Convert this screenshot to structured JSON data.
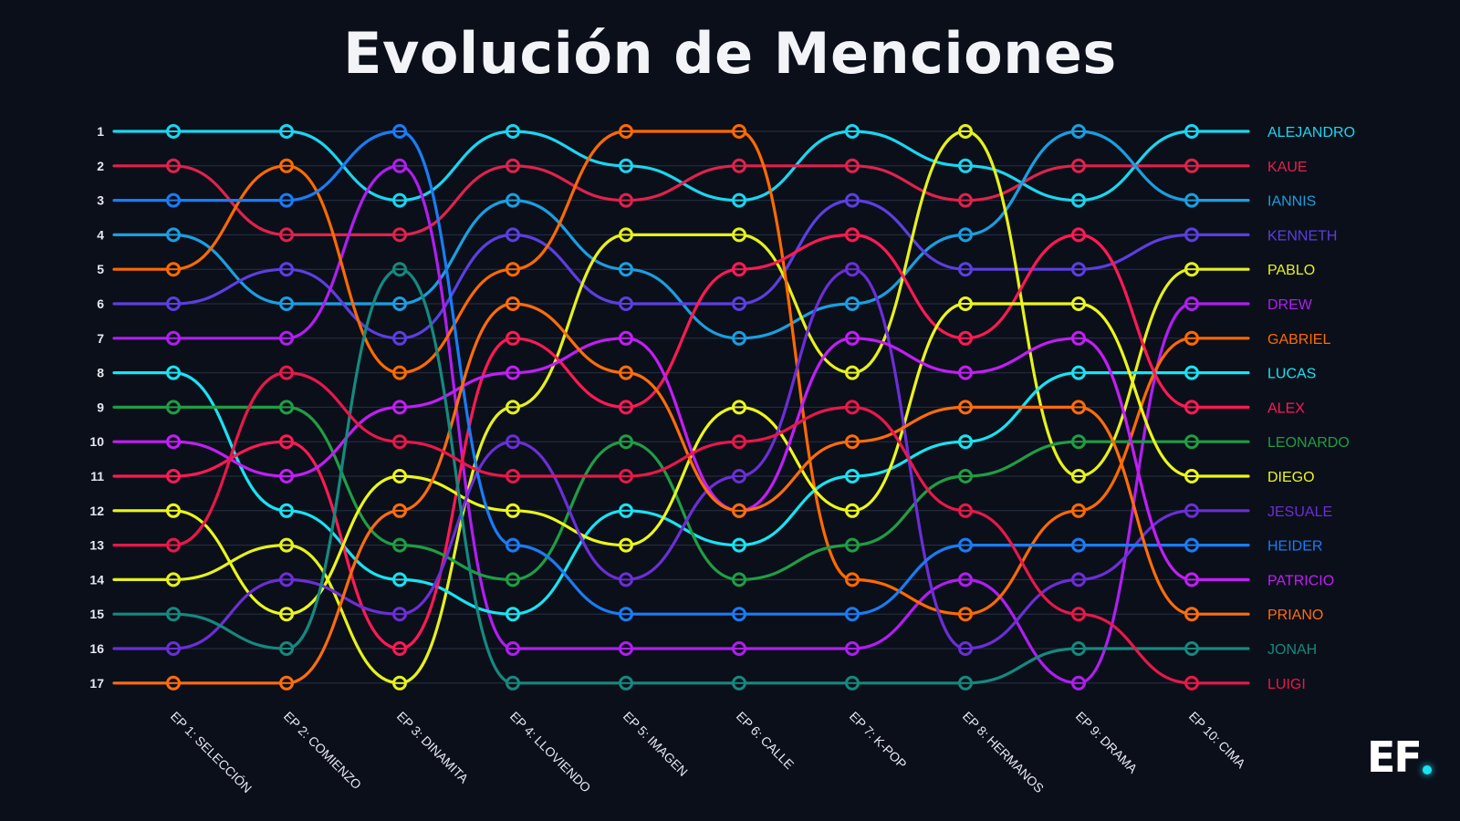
{
  "title": "Evolución de Menciones",
  "logo": {
    "text": "EF"
  },
  "chart_data": {
    "type": "bump",
    "title": "Evolución de Menciones",
    "categories": [
      "EP 1: SELECCIÓN",
      "EP 2: COMIENZO",
      "EP 3: DINAMITA",
      "EP 4: LLOVIENDO",
      "EP 5: IMAGEN",
      "EP 6: CALLE",
      "EP 7: K-POP",
      "EP 8: HERMANOS",
      "EP 9: DRAMA",
      "EP 10: CIMA"
    ],
    "yticks": [
      1,
      2,
      3,
      4,
      5,
      6,
      7,
      8,
      9,
      10,
      11,
      12,
      13,
      14,
      15,
      16,
      17
    ],
    "ylim": [
      1,
      17
    ],
    "y_inverted": true,
    "grid": true,
    "legend": "right",
    "series": [
      {
        "name": "ALEJANDRO",
        "color": "#1ad6f0",
        "values": [
          1,
          1,
          3,
          1,
          2,
          3,
          1,
          2,
          3,
          1
        ]
      },
      {
        "name": "KAUE",
        "color": "#e0224d",
        "values": [
          2,
          4,
          4,
          2,
          3,
          2,
          2,
          3,
          2,
          2
        ]
      },
      {
        "name": "IANNIS",
        "color": "#1a9fe0",
        "values": [
          4,
          6,
          6,
          3,
          5,
          7,
          6,
          4,
          1,
          3
        ]
      },
      {
        "name": "KENNETH",
        "color": "#5b3fe0",
        "values": [
          6,
          5,
          7,
          4,
          6,
          6,
          3,
          5,
          5,
          4
        ]
      },
      {
        "name": "PABLO",
        "color": "#e6f21a",
        "values": [
          14,
          13,
          17,
          9,
          4,
          4,
          8,
          1,
          11,
          5
        ]
      },
      {
        "name": "DREW",
        "color": "#b01ef0",
        "values": [
          7,
          7,
          2,
          16,
          16,
          16,
          16,
          14,
          17,
          6
        ]
      },
      {
        "name": "GABRIEL",
        "color": "#ff6a00",
        "values": [
          5,
          2,
          8,
          5,
          1,
          1,
          14,
          15,
          12,
          7
        ]
      },
      {
        "name": "LUCAS",
        "color": "#19e3f2",
        "values": [
          8,
          12,
          14,
          15,
          12,
          13,
          11,
          10,
          8,
          8
        ]
      },
      {
        "name": "ALEX",
        "color": "#ff1a55",
        "values": [
          11,
          10,
          16,
          7,
          9,
          5,
          4,
          7,
          4,
          9
        ]
      },
      {
        "name": "LEONARDO",
        "color": "#1f9e44",
        "values": [
          9,
          9,
          13,
          14,
          10,
          14,
          13,
          11,
          10,
          10
        ]
      },
      {
        "name": "DIEGO",
        "color": "#ecf71a",
        "values": [
          12,
          15,
          11,
          12,
          13,
          9,
          12,
          6,
          6,
          11
        ]
      },
      {
        "name": "JESUALE",
        "color": "#6a2fd6",
        "values": [
          16,
          14,
          15,
          10,
          14,
          11,
          5,
          16,
          14,
          12
        ]
      },
      {
        "name": "HEIDER",
        "color": "#1a7cf5",
        "values": [
          3,
          3,
          1,
          13,
          15,
          15,
          15,
          13,
          13,
          13
        ]
      },
      {
        "name": "PATRICIO",
        "color": "#c21ef5",
        "values": [
          10,
          11,
          9,
          8,
          7,
          12,
          7,
          8,
          7,
          14
        ]
      },
      {
        "name": "PRIANO",
        "color": "#ff6d0a",
        "values": [
          17,
          17,
          12,
          6,
          8,
          12,
          10,
          9,
          9,
          15
        ]
      },
      {
        "name": "JONAH",
        "color": "#15897f",
        "values": [
          15,
          16,
          5,
          17,
          17,
          17,
          17,
          17,
          16,
          16
        ]
      },
      {
        "name": "LUIGI",
        "color": "#e8184a",
        "values": [
          13,
          8,
          10,
          11,
          11,
          10,
          9,
          12,
          15,
          17
        ]
      }
    ]
  }
}
